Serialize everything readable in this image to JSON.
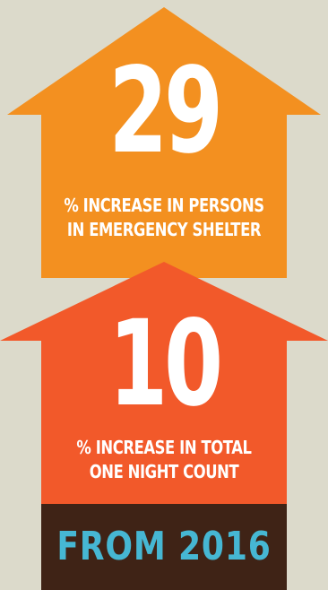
{
  "stat_top": {
    "number": "29",
    "caption_line1": "% INCREASE IN PERSONS",
    "caption_line2": "IN EMERGENCY SHELTER"
  },
  "stat_bottom": {
    "number": "10",
    "caption_line1": "% INCREASE IN TOTAL",
    "caption_line2": "ONE NIGHT COUNT"
  },
  "footer": {
    "label": "FROM 2016"
  },
  "colors": {
    "background": "#dcdacb",
    "top_arrow": "#f39020",
    "bottom_arrow": "#f2592a",
    "footer_bar": "#3f2316",
    "footer_text": "#46b7d3",
    "text": "#ffffff"
  }
}
